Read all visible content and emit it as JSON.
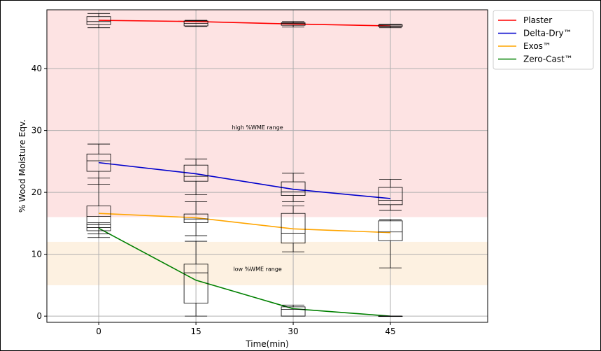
{
  "chart_data": {
    "type": "line",
    "xlabel": "Time(min)",
    "ylabel": "% Wood Moisture Eqv.",
    "x": [
      0,
      15,
      30,
      45
    ],
    "xlim": [
      -8,
      60
    ],
    "ylim": [
      -1,
      49.5
    ],
    "yticks": [
      0,
      10,
      20,
      30,
      40
    ],
    "grid": true,
    "legend_position": "outside-top-right",
    "bands": [
      {
        "label": "high %WME range",
        "from": 16,
        "to": 49.5,
        "color": "#fde3e3",
        "label_at": [
          24.5,
          30.2
        ]
      },
      {
        "label": "low %WME range",
        "from": 5,
        "to": 12,
        "color": "#fdf1e1",
        "label_at": [
          24.5,
          7.3
        ]
      }
    ],
    "series": [
      {
        "name": "Plaster",
        "color": "#ff0000",
        "values": [
          47.8,
          47.6,
          47.2,
          46.9
        ],
        "boxes": [
          {
            "whislo": 46.6,
            "q1": 47.1,
            "med": 47.6,
            "q3": 48.4,
            "whishi": 48.9
          },
          {
            "whislo": 46.8,
            "q1": 46.9,
            "med": 47.3,
            "q3": 47.7,
            "whishi": 47.8
          },
          {
            "whislo": 46.7,
            "q1": 47.0,
            "med": 47.3,
            "q3": 47.4,
            "whishi": 47.6
          },
          {
            "whislo": 46.6,
            "q1": 46.8,
            "med": 46.9,
            "q3": 47.1,
            "whishi": 47.2
          }
        ]
      },
      {
        "name": "Delta-Dry™",
        "color": "#0000cc",
        "values": [
          24.8,
          23.0,
          20.5,
          19.0
        ],
        "boxes": [
          {
            "whislo": 21.3,
            "q1": 23.4,
            "med": 25.1,
            "q3": 26.2,
            "whishi": 27.8
          },
          {
            "whislo": 19.6,
            "q1": 21.8,
            "med": 22.6,
            "q3": 24.4,
            "whishi": 25.4
          },
          {
            "whislo": 18.5,
            "q1": 19.5,
            "med": 20.1,
            "q3": 21.7,
            "whishi": 23.1
          },
          {
            "whislo": 17.1,
            "q1": 18.0,
            "med": 18.7,
            "q3": 20.8,
            "whishi": 22.1
          }
        ]
      },
      {
        "name": "Exos™",
        "color": "#ffa500",
        "values": [
          16.6,
          15.9,
          14.1,
          13.5
        ],
        "boxes": [
          {
            "whislo": 13.3,
            "q1": 14.8,
            "med": 16.1,
            "q3": 17.8,
            "whishi": 22.3
          },
          {
            "whislo": 13.0,
            "q1": 15.1,
            "med": 15.7,
            "q3": 16.5,
            "whishi": 18.5
          },
          {
            "whislo": 10.4,
            "q1": 11.8,
            "med": 13.4,
            "q3": 16.6,
            "whishi": 17.8
          },
          {
            "whislo": 7.8,
            "q1": 12.2,
            "med": 13.6,
            "q3": 15.4,
            "whishi": 15.6
          }
        ]
      },
      {
        "name": "Zero-Cast™",
        "color": "#008000",
        "values": [
          14.2,
          5.8,
          1.2,
          0.0
        ],
        "boxes": [
          {
            "whislo": 12.7,
            "q1": 13.8,
            "med": 14.3,
            "q3": 14.8,
            "whishi": 15.1
          },
          {
            "whislo": 0.0,
            "q1": 2.1,
            "med": 7.0,
            "q3": 8.4,
            "whishi": 12.1
          },
          {
            "whislo": 0.0,
            "q1": 0.0,
            "med": 1.1,
            "q3": 1.5,
            "whishi": 1.8
          },
          {
            "whislo": 0.0,
            "q1": 0.0,
            "med": 0.0,
            "q3": 0.0,
            "whishi": 0.0
          }
        ]
      }
    ]
  }
}
